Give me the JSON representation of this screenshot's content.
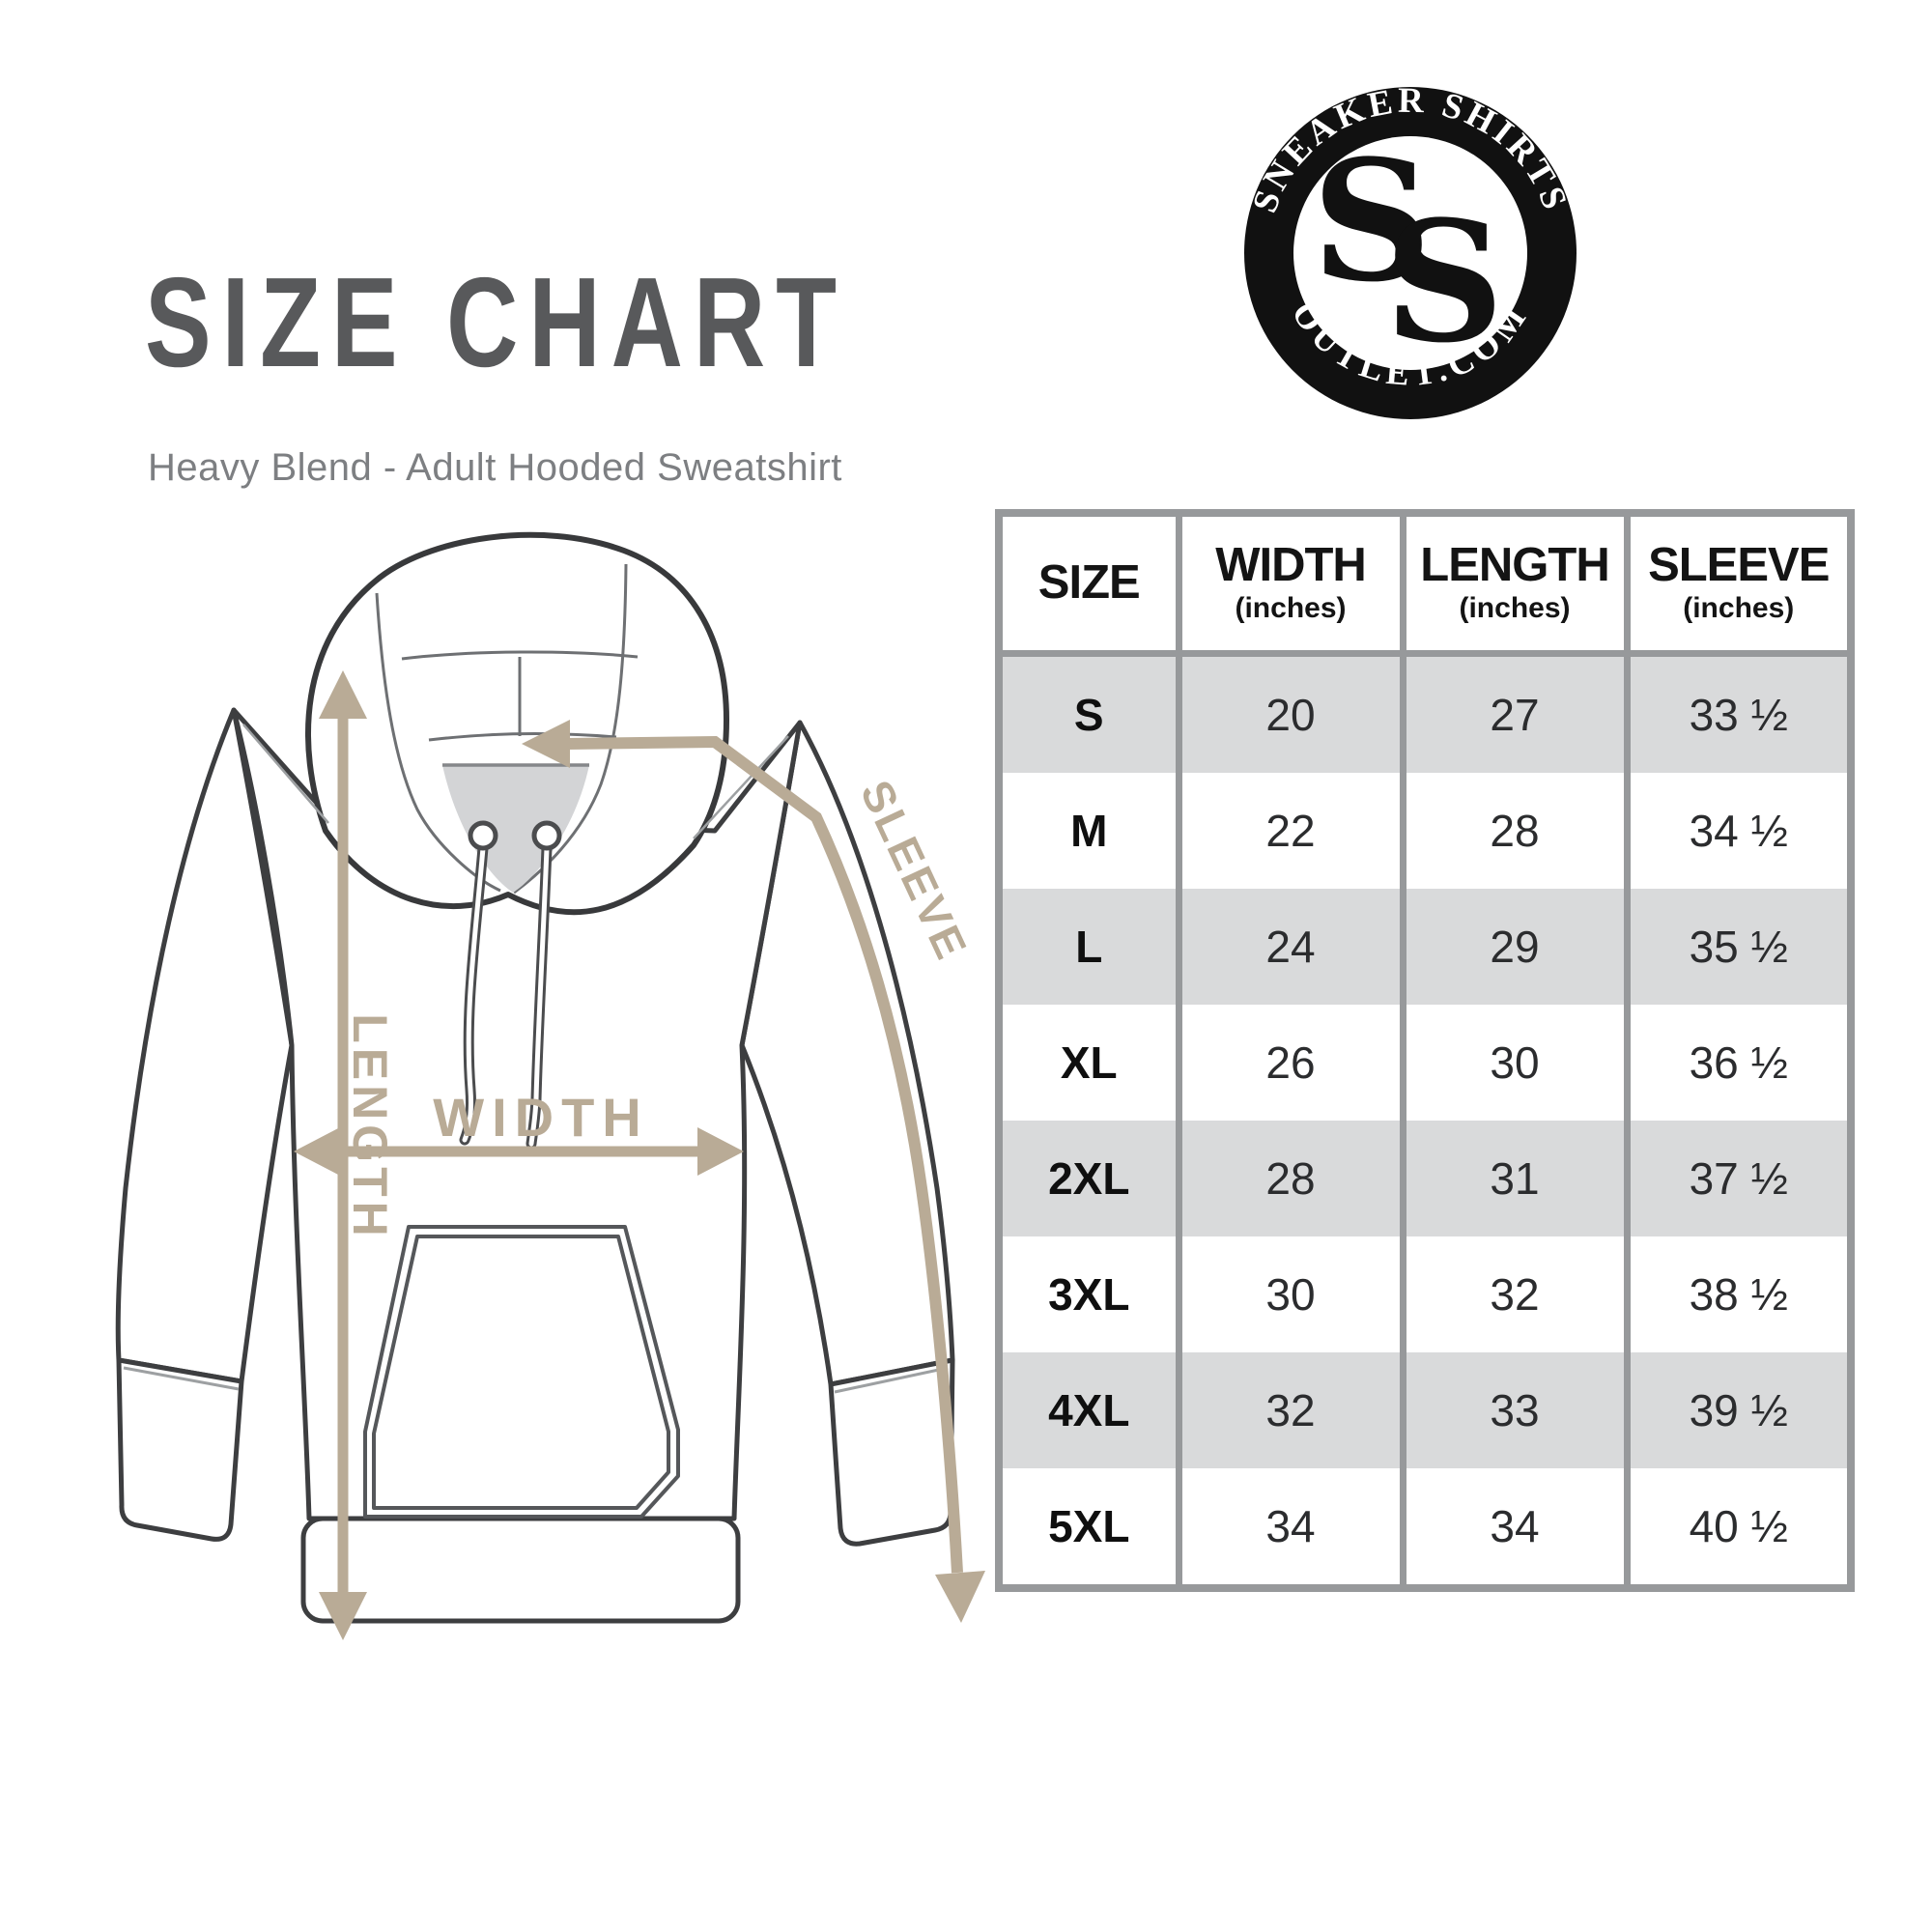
{
  "page": {
    "title": "SIZE CHART",
    "subtitle": "Heavy Blend - Adult Hooded Sweatshirt"
  },
  "logo": {
    "arc_top": "SNEAKER SHIRTS",
    "arc_bottom": "OUTLET.COM",
    "monogram_s1": "S",
    "monogram_s2": "S"
  },
  "diagram": {
    "garment": "hooded sweatshirt line drawing",
    "width_label": "WIDTH",
    "length_label": "LENGTH",
    "sleeve_label": "SLEEVE"
  },
  "chart_data": {
    "type": "table",
    "title": "SIZE CHART",
    "columns": [
      {
        "label": "SIZE",
        "unit": ""
      },
      {
        "label": "WIDTH",
        "unit": "(inches)"
      },
      {
        "label": "LENGTH",
        "unit": "(inches)"
      },
      {
        "label": "SLEEVE",
        "unit": "(inches)"
      }
    ],
    "rows": [
      {
        "size": "S",
        "width": "20",
        "length": "27",
        "sleeve": "33 ½"
      },
      {
        "size": "M",
        "width": "22",
        "length": "28",
        "sleeve": "34 ½"
      },
      {
        "size": "L",
        "width": "24",
        "length": "29",
        "sleeve": "35 ½"
      },
      {
        "size": "XL",
        "width": "26",
        "length": "30",
        "sleeve": "36 ½"
      },
      {
        "size": "2XL",
        "width": "28",
        "length": "31",
        "sleeve": "37 ½"
      },
      {
        "size": "3XL",
        "width": "30",
        "length": "32",
        "sleeve": "38 ½"
      },
      {
        "size": "4XL",
        "width": "32",
        "length": "33",
        "sleeve": "39 ½"
      },
      {
        "size": "5XL",
        "width": "34",
        "length": "34",
        "sleeve": "40 ½"
      }
    ]
  },
  "colors": {
    "accent_tan": "#b9ab96",
    "table_border": "#97999b",
    "row_alt": "#d9dadb",
    "title_gray": "#58595b",
    "subtitle_gray": "#7d7f82",
    "outline_dark": "#3d3e40",
    "logo_black": "#111111"
  }
}
